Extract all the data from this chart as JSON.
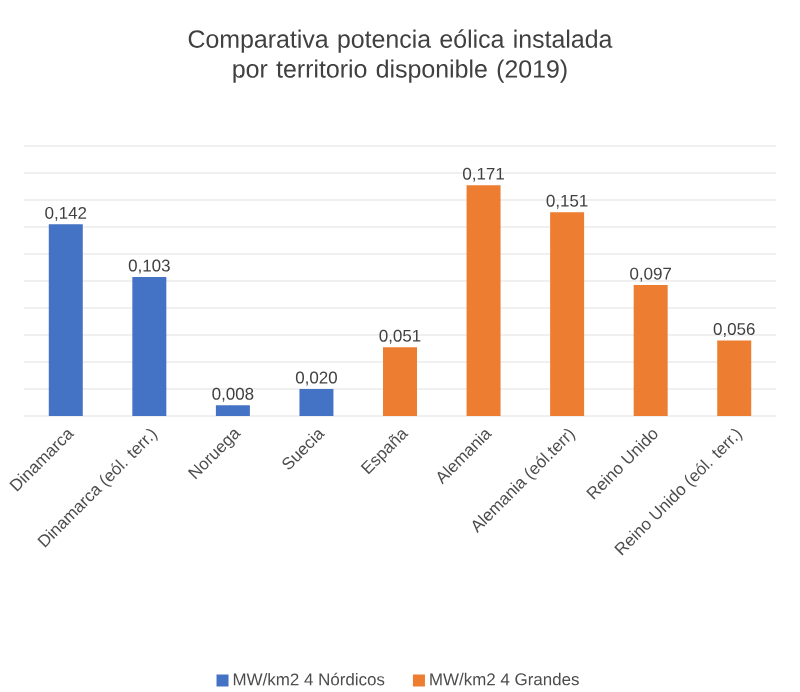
{
  "chart_data": {
    "type": "bar",
    "title": "Comparativa potencia eólica instalada por territorio disponible (2019)",
    "categories": [
      "Dinamarca",
      "Dinamarca (eól. terr.)",
      "Noruega",
      "Suecia",
      "España",
      "Alemania",
      "Alemania (eól.terr)",
      "Reino Unido",
      "Reino Unido (eól. terr.)"
    ],
    "series": [
      {
        "name": "MW/km2 4 Nórdicos",
        "color": "#4472c4",
        "values": [
          0.142,
          0.103,
          0.008,
          0.02,
          null,
          null,
          null,
          null,
          null
        ],
        "value_labels": [
          "0,142",
          "0,103",
          "0,008",
          "0,020",
          null,
          null,
          null,
          null,
          null
        ]
      },
      {
        "name": "MW/km2 4 Grandes",
        "color": "#ed7d31",
        "values": [
          null,
          null,
          null,
          null,
          0.051,
          0.171,
          0.151,
          0.097,
          0.056
        ],
        "value_labels": [
          null,
          null,
          null,
          null,
          "0,051",
          "0,171",
          "0,151",
          "0,097",
          "0,056"
        ]
      }
    ],
    "ylim": [
      0,
      0.2
    ],
    "yticks": [
      {
        "value": 0,
        "label": null
      },
      {
        "value": 0.02,
        "label": null
      },
      {
        "value": 0.04,
        "label": null
      },
      {
        "value": 0.06,
        "label": null
      },
      {
        "value": 0.08,
        "label": null
      },
      {
        "value": 0.1,
        "label": null
      },
      {
        "value": 0.12,
        "label": null
      },
      {
        "value": 0.14,
        "label": null
      },
      {
        "value": 0.16,
        "label": null
      },
      {
        "value": 0.18,
        "label": null
      },
      {
        "value": 0.2,
        "label": null
      }
    ],
    "grid": "y",
    "legend": "bottom",
    "tick_labels": "x"
  }
}
